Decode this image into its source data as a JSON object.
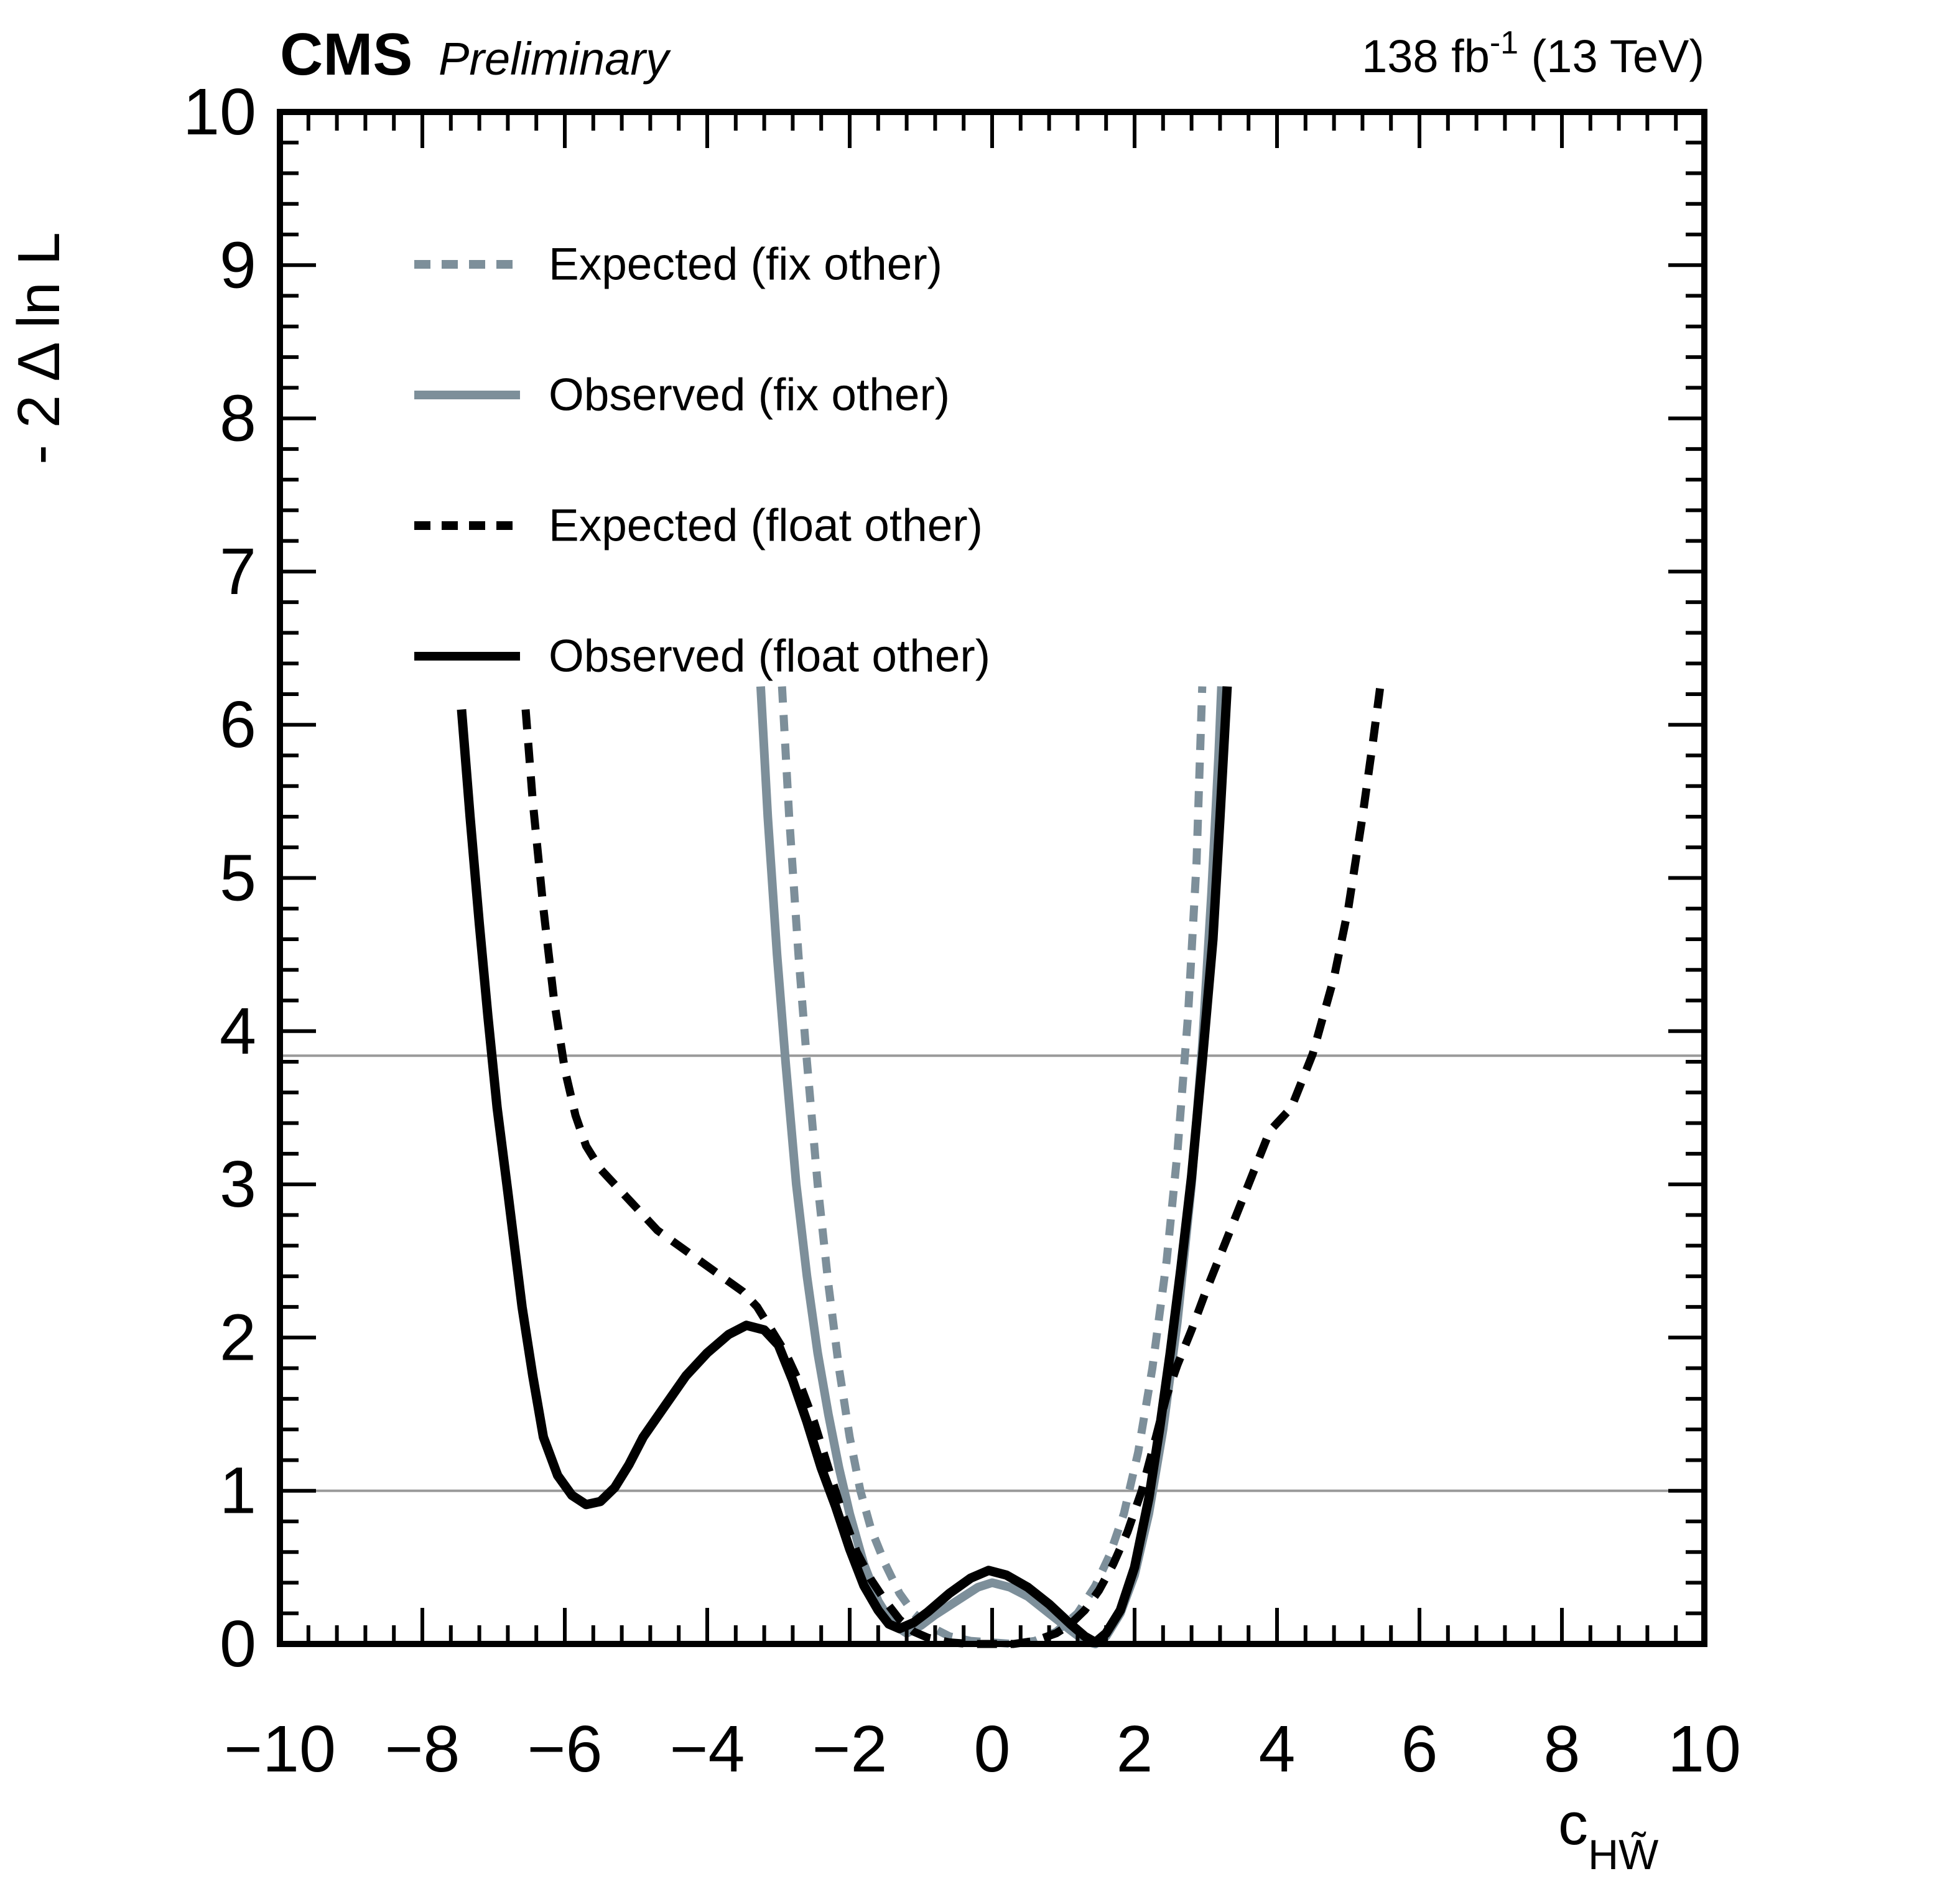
{
  "header": {
    "experiment": "CMS",
    "label": "Preliminary",
    "lumi": "138 fb",
    "lumi_sup": "-1",
    "energy": " (13 TeV)"
  },
  "axes": {
    "x": {
      "title": "c",
      "subscript": "HW̃",
      "min": -10,
      "max": 10,
      "label_step": 2,
      "minor_step": 0.4,
      "tick_labels": [
        "−10",
        "−8",
        "−6",
        "−4",
        "−2",
        "0",
        "2",
        "4",
        "6",
        "8",
        "10"
      ]
    },
    "y": {
      "title": "- 2 Δ ln L",
      "min": 0,
      "max": 10,
      "label_step": 1,
      "minor_step": 0.2,
      "tick_labels": [
        "0",
        "1",
        "2",
        "3",
        "4",
        "5",
        "6",
        "7",
        "8",
        "9",
        "10"
      ]
    }
  },
  "chart_data": {
    "type": "line",
    "title": "CMS Preliminary 138 fb-1 (13 TeV)",
    "xlabel": "c_HW~",
    "ylabel": "-2 Delta ln L",
    "xlim": [
      -10,
      10
    ],
    "ylim": [
      0,
      10
    ],
    "grid": "off",
    "legend_position": "top-left-inside",
    "reference_lines": {
      "color": "#9a9a9a",
      "values": [
        1.0,
        3.84
      ]
    },
    "series": [
      {
        "name": "Expected (fix other)",
        "style": "dashed",
        "color": "#7d8f9a",
        "width": 13,
        "dash": "26 20",
        "points": [
          [
            -2.95,
            6.25
          ],
          [
            -2.85,
            5.4
          ],
          [
            -2.72,
            4.5
          ],
          [
            -2.6,
            3.8
          ],
          [
            -2.45,
            3.0
          ],
          [
            -2.3,
            2.35
          ],
          [
            -2.15,
            1.8
          ],
          [
            -2.0,
            1.35
          ],
          [
            -1.85,
            1.0
          ],
          [
            -1.7,
            0.75
          ],
          [
            -1.5,
            0.52
          ],
          [
            -1.3,
            0.33
          ],
          [
            -1.1,
            0.2
          ],
          [
            -0.9,
            0.12
          ],
          [
            -0.6,
            0.05
          ],
          [
            -0.3,
            0.02
          ],
          [
            0.0,
            0.01
          ],
          [
            0.3,
            0.0
          ],
          [
            0.6,
            0.02
          ],
          [
            0.9,
            0.08
          ],
          [
            1.2,
            0.2
          ],
          [
            1.45,
            0.38
          ],
          [
            1.65,
            0.58
          ],
          [
            1.85,
            0.85
          ],
          [
            2.05,
            1.25
          ],
          [
            2.25,
            1.8
          ],
          [
            2.45,
            2.5
          ],
          [
            2.6,
            3.2
          ],
          [
            2.75,
            4.1
          ],
          [
            2.87,
            5.1
          ],
          [
            2.95,
            6.25
          ]
        ]
      },
      {
        "name": "Observed (fix other)",
        "style": "solid",
        "color": "#7d8f9a",
        "width": 14,
        "dash": "",
        "points": [
          [
            -3.25,
            6.25
          ],
          [
            -3.15,
            5.4
          ],
          [
            -3.02,
            4.5
          ],
          [
            -2.9,
            3.8
          ],
          [
            -2.75,
            3.0
          ],
          [
            -2.6,
            2.4
          ],
          [
            -2.45,
            1.9
          ],
          [
            -2.3,
            1.5
          ],
          [
            -2.15,
            1.15
          ],
          [
            -2.0,
            0.85
          ],
          [
            -1.8,
            0.52
          ],
          [
            -1.6,
            0.28
          ],
          [
            -1.4,
            0.13
          ],
          [
            -1.2,
            0.07
          ],
          [
            -1.0,
            0.12
          ],
          [
            -0.8,
            0.19
          ],
          [
            -0.5,
            0.28
          ],
          [
            -0.2,
            0.37
          ],
          [
            0.0,
            0.4
          ],
          [
            0.25,
            0.37
          ],
          [
            0.5,
            0.31
          ],
          [
            0.8,
            0.2
          ],
          [
            1.1,
            0.09
          ],
          [
            1.3,
            0.02
          ],
          [
            1.45,
            0.0
          ],
          [
            1.6,
            0.05
          ],
          [
            1.8,
            0.2
          ],
          [
            2.0,
            0.45
          ],
          [
            2.2,
            0.85
          ],
          [
            2.4,
            1.4
          ],
          [
            2.6,
            2.1
          ],
          [
            2.8,
            3.0
          ],
          [
            2.95,
            3.9
          ],
          [
            3.08,
            4.9
          ],
          [
            3.18,
            5.8
          ],
          [
            3.22,
            6.25
          ]
        ]
      },
      {
        "name": "Expected (float other)",
        "style": "dashed",
        "color": "#000000",
        "width": 13,
        "dash": "32 22",
        "points": [
          [
            -6.55,
            6.1
          ],
          [
            -6.45,
            5.5
          ],
          [
            -6.3,
            4.8
          ],
          [
            -6.15,
            4.2
          ],
          [
            -6.0,
            3.75
          ],
          [
            -5.85,
            3.45
          ],
          [
            -5.7,
            3.25
          ],
          [
            -5.5,
            3.1
          ],
          [
            -5.3,
            3.0
          ],
          [
            -5.0,
            2.85
          ],
          [
            -4.7,
            2.7
          ],
          [
            -4.4,
            2.6
          ],
          [
            -4.1,
            2.5
          ],
          [
            -3.8,
            2.4
          ],
          [
            -3.5,
            2.3
          ],
          [
            -3.3,
            2.2
          ],
          [
            -3.1,
            2.05
          ],
          [
            -2.9,
            1.9
          ],
          [
            -2.7,
            1.7
          ],
          [
            -2.5,
            1.45
          ],
          [
            -2.3,
            1.15
          ],
          [
            -2.1,
            0.85
          ],
          [
            -1.9,
            0.6
          ],
          [
            -1.7,
            0.42
          ],
          [
            -1.5,
            0.28
          ],
          [
            -1.3,
            0.16
          ],
          [
            -1.1,
            0.08
          ],
          [
            -0.9,
            0.04
          ],
          [
            -0.6,
            0.01
          ],
          [
            -0.3,
            0.0
          ],
          [
            0.0,
            0.0
          ],
          [
            0.3,
            0.0
          ],
          [
            0.6,
            0.02
          ],
          [
            0.9,
            0.07
          ],
          [
            1.1,
            0.13
          ],
          [
            1.3,
            0.22
          ],
          [
            1.5,
            0.35
          ],
          [
            1.7,
            0.52
          ],
          [
            1.9,
            0.73
          ],
          [
            2.1,
            1.0
          ],
          [
            2.3,
            1.35
          ],
          [
            2.45,
            1.62
          ],
          [
            2.6,
            1.82
          ],
          [
            2.8,
            2.05
          ],
          [
            3.0,
            2.3
          ],
          [
            3.3,
            2.65
          ],
          [
            3.6,
            3.0
          ],
          [
            3.9,
            3.35
          ],
          [
            4.2,
            3.5
          ],
          [
            4.5,
            3.85
          ],
          [
            4.8,
            4.35
          ],
          [
            5.0,
            4.8
          ],
          [
            5.2,
            5.4
          ],
          [
            5.35,
            5.9
          ],
          [
            5.45,
            6.25
          ]
        ]
      },
      {
        "name": "Observed (float other)",
        "style": "solid",
        "color": "#000000",
        "width": 15,
        "dash": "",
        "points": [
          [
            -7.45,
            6.1
          ],
          [
            -7.33,
            5.4
          ],
          [
            -7.2,
            4.7
          ],
          [
            -7.08,
            4.1
          ],
          [
            -6.95,
            3.5
          ],
          [
            -6.8,
            2.95
          ],
          [
            -6.6,
            2.2
          ],
          [
            -6.45,
            1.75
          ],
          [
            -6.3,
            1.35
          ],
          [
            -6.1,
            1.1
          ],
          [
            -5.9,
            0.97
          ],
          [
            -5.7,
            0.91
          ],
          [
            -5.5,
            0.93
          ],
          [
            -5.3,
            1.02
          ],
          [
            -5.1,
            1.17
          ],
          [
            -4.9,
            1.35
          ],
          [
            -4.6,
            1.55
          ],
          [
            -4.3,
            1.75
          ],
          [
            -4.0,
            1.9
          ],
          [
            -3.7,
            2.02
          ],
          [
            -3.45,
            2.08
          ],
          [
            -3.2,
            2.05
          ],
          [
            -3.0,
            1.95
          ],
          [
            -2.8,
            1.72
          ],
          [
            -2.6,
            1.45
          ],
          [
            -2.4,
            1.15
          ],
          [
            -2.2,
            0.9
          ],
          [
            -2.0,
            0.62
          ],
          [
            -1.8,
            0.38
          ],
          [
            -1.6,
            0.22
          ],
          [
            -1.45,
            0.13
          ],
          [
            -1.3,
            0.1
          ],
          [
            -1.1,
            0.14
          ],
          [
            -0.9,
            0.21
          ],
          [
            -0.6,
            0.33
          ],
          [
            -0.3,
            0.43
          ],
          [
            -0.05,
            0.48
          ],
          [
            0.2,
            0.45
          ],
          [
            0.5,
            0.37
          ],
          [
            0.8,
            0.26
          ],
          [
            1.1,
            0.13
          ],
          [
            1.3,
            0.05
          ],
          [
            1.45,
            0.01
          ],
          [
            1.6,
            0.07
          ],
          [
            1.8,
            0.22
          ],
          [
            2.0,
            0.5
          ],
          [
            2.2,
            0.95
          ],
          [
            2.35,
            1.4
          ],
          [
            2.5,
            1.9
          ],
          [
            2.65,
            2.45
          ],
          [
            2.8,
            3.05
          ],
          [
            2.95,
            3.8
          ],
          [
            3.1,
            4.6
          ],
          [
            3.2,
            5.4
          ],
          [
            3.3,
            6.25
          ]
        ]
      }
    ]
  }
}
